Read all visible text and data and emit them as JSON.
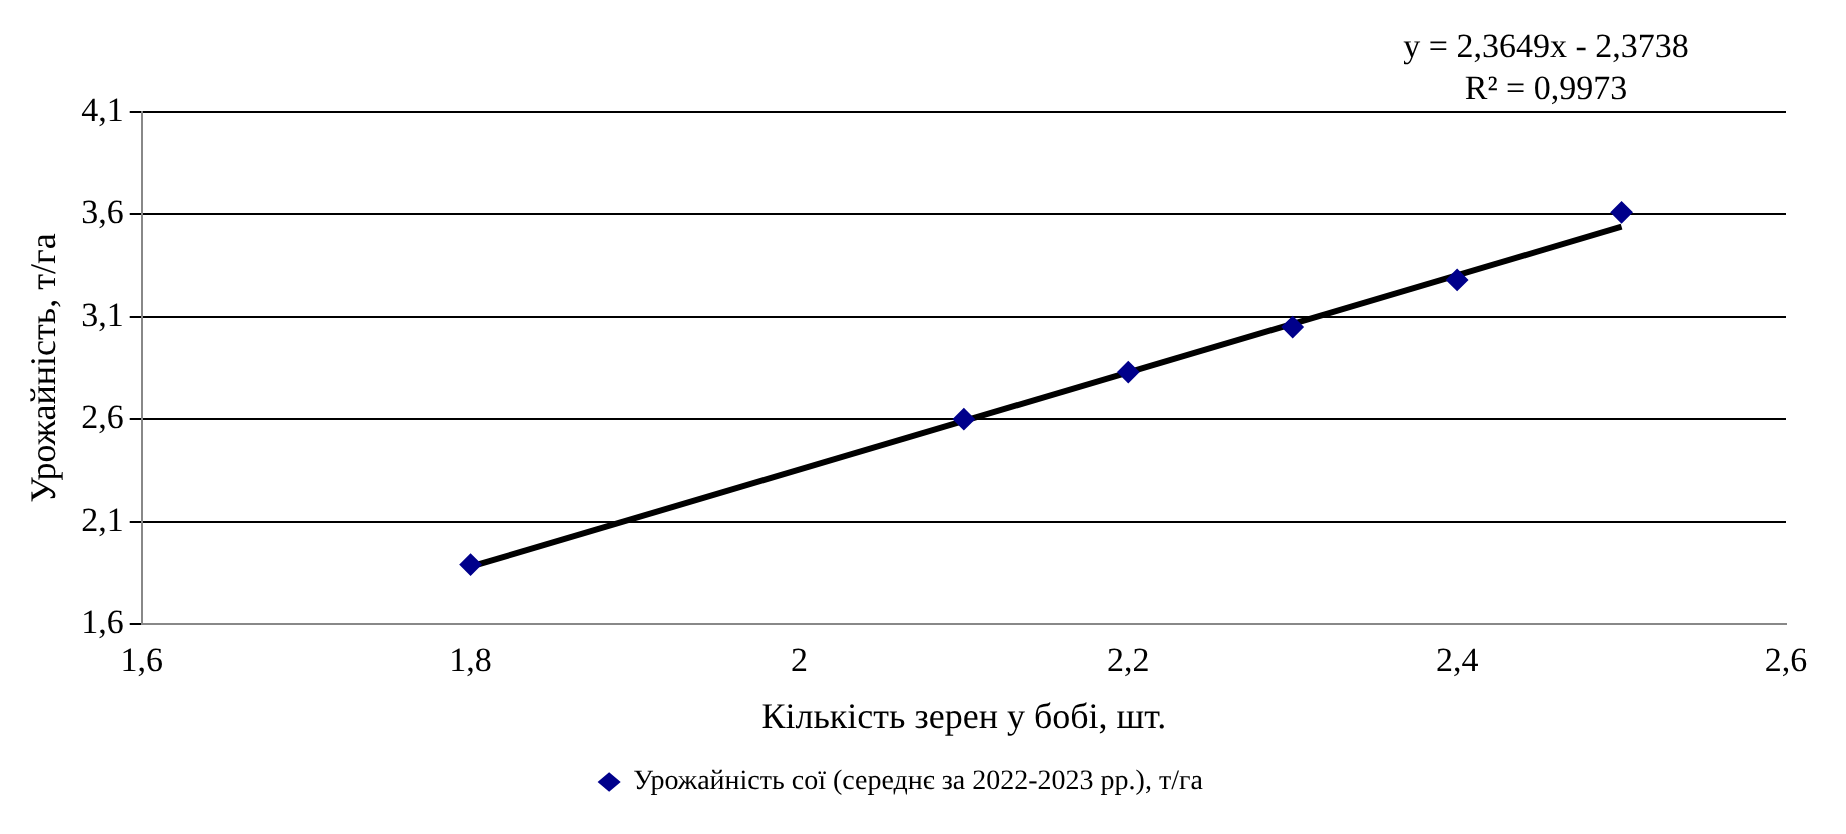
{
  "chart_data": {
    "type": "scatter",
    "xlabel": "Кількість зерен у бобі, шт.",
    "ylabel": "Урожайність, т/га",
    "x": [
      1.8,
      2.1,
      2.2,
      2.3,
      2.4,
      2.5
    ],
    "series": [
      {
        "name": "Урожайність сої (середнє за 2022-2023 рр.), т/га",
        "color": "#00008b",
        "values": [
          1.89,
          2.6,
          2.83,
          3.05,
          3.28,
          3.61
        ],
        "marker": "diamond"
      },
      {
        "type": "line",
        "color": "#000000",
        "x": [
          1.8,
          2.5
        ],
        "values": [
          1.88,
          3.54
        ],
        "marker": "none"
      }
    ],
    "xlim": [
      1.6,
      2.6
    ],
    "xticks": [
      {
        "value": 1.6,
        "label": "1,6"
      },
      {
        "value": 1.8,
        "label": "1,8"
      },
      2,
      {
        "value": 2.2,
        "label": "2,2"
      },
      {
        "value": 2.4,
        "label": "2,4"
      },
      {
        "value": 2.6,
        "label": "2,6"
      }
    ],
    "ylim": [
      1.6,
      4.1
    ],
    "yticks": [
      {
        "value": 1.6,
        "label": "1,6"
      },
      {
        "value": 2.1,
        "label": "2,1"
      },
      {
        "value": 2.6,
        "label": "2,6"
      },
      {
        "value": 3.1,
        "label": "3,1"
      },
      {
        "value": 3.6,
        "label": "3,6"
      },
      {
        "value": 4.1,
        "label": "4,1"
      }
    ],
    "grid": "y",
    "legend": "bottom",
    "annotations": [
      "y = 2,3649x - 2,3738",
      "R² = 0,9973"
    ]
  }
}
